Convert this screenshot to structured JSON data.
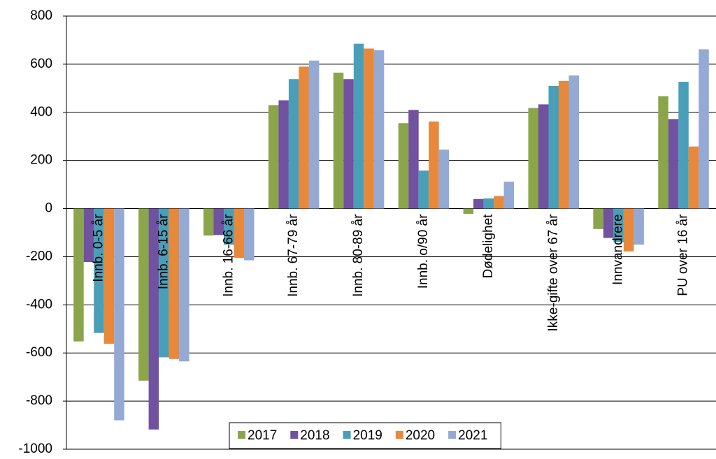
{
  "chart_data": {
    "type": "bar",
    "categories": [
      "Innb. 0-5 år",
      "Innb. 6-15 år",
      "Innb. 16-66 år",
      "Innb. 67-79 år",
      "Innb. 80-89 år",
      "Innb. o/90 år",
      "Dødelighet",
      "Ikke-gifte over 67 år",
      "Innvandrere",
      "PU over 16 år"
    ],
    "series": [
      {
        "name": "2017",
        "color": "#8aa54a",
        "values": [
          -552,
          -715,
          -112,
          430,
          565,
          355,
          -22,
          418,
          -85,
          467
        ]
      },
      {
        "name": "2018",
        "color": "#7052a0",
        "values": [
          -222,
          -918,
          -110,
          450,
          538,
          410,
          40,
          433,
          -122,
          372
        ]
      },
      {
        "name": "2019",
        "color": "#4a9fb8",
        "values": [
          -517,
          -618,
          -150,
          538,
          685,
          158,
          42,
          510,
          -140,
          527
        ]
      },
      {
        "name": "2020",
        "color": "#e8883a",
        "values": [
          -562,
          -625,
          -205,
          590,
          665,
          362,
          52,
          530,
          -178,
          258
        ]
      },
      {
        "name": "2021",
        "color": "#94a9d4",
        "values": [
          -880,
          -635,
          -215,
          615,
          658,
          245,
          112,
          553,
          -150,
          662
        ]
      }
    ],
    "ylim": [
      -1000,
      800
    ],
    "yticks": [
      -1000,
      -800,
      -600,
      -400,
      -200,
      0,
      200,
      400,
      600,
      800
    ],
    "grid": true,
    "legend": "bottom"
  }
}
